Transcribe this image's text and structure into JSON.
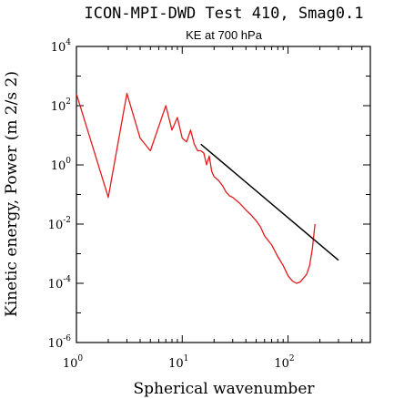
{
  "chart_data": {
    "type": "line",
    "title": "ICON-MPI-DWD Test 410, Smag0.1",
    "subtitle": "KE at 700 hPa",
    "xlabel": "Spherical wavenumber",
    "ylabel": "Kinetic energy, Power (m 2/s 2)",
    "xscale": "log",
    "yscale": "log",
    "xlim": [
      1,
      600
    ],
    "ylim": [
      1e-06,
      10000.0
    ],
    "x_ticks": [
      {
        "value": 1,
        "base": "10",
        "exp": "0"
      },
      {
        "value": 10,
        "base": "10",
        "exp": "1"
      },
      {
        "value": 100,
        "base": "10",
        "exp": "2"
      }
    ],
    "y_ticks": [
      {
        "value": 10000.0,
        "base": "10",
        "exp": "4"
      },
      {
        "value": 100.0,
        "base": "10",
        "exp": "2"
      },
      {
        "value": 1,
        "base": "10",
        "exp": "0"
      },
      {
        "value": 0.01,
        "base": "10",
        "exp": "-2"
      },
      {
        "value": 0.0001,
        "base": "10",
        "exp": "-4"
      },
      {
        "value": 1e-06,
        "base": "10",
        "exp": "-6"
      }
    ],
    "series": [
      {
        "color": "#e41a1c",
        "points": [
          [
            1,
            250
          ],
          [
            2,
            0.08
          ],
          [
            3,
            260
          ],
          [
            4,
            8
          ],
          [
            5,
            3
          ],
          [
            6,
            20
          ],
          [
            7,
            100
          ],
          [
            8,
            15
          ],
          [
            9,
            40
          ],
          [
            10,
            8
          ],
          [
            11,
            6
          ],
          [
            12,
            15
          ],
          [
            13,
            5
          ],
          [
            14,
            3
          ],
          [
            15,
            3
          ],
          [
            16,
            2.5
          ],
          [
            17,
            1
          ],
          [
            18,
            2
          ],
          [
            19,
            0.6
          ],
          [
            20,
            0.4
          ],
          [
            22,
            0.3
          ],
          [
            24,
            0.2
          ],
          [
            26,
            0.12
          ],
          [
            28,
            0.09
          ],
          [
            30,
            0.08
          ],
          [
            35,
            0.05
          ],
          [
            40,
            0.03
          ],
          [
            45,
            0.02
          ],
          [
            50,
            0.013
          ],
          [
            55,
            0.008
          ],
          [
            60,
            0.004
          ],
          [
            70,
            0.002
          ],
          [
            80,
            0.0008
          ],
          [
            90,
            0.0004
          ],
          [
            100,
            0.00018
          ],
          [
            110,
            0.00012
          ],
          [
            120,
            0.0001
          ],
          [
            130,
            0.00011
          ],
          [
            140,
            0.00015
          ],
          [
            150,
            0.0002
          ],
          [
            160,
            0.0004
          ],
          [
            170,
            0.0015
          ],
          [
            175,
            0.004
          ],
          [
            180,
            0.01
          ]
        ]
      },
      {
        "color": "#000000",
        "points": [
          [
            15,
            5
          ],
          [
            300,
            0.0006
          ]
        ]
      }
    ],
    "grid": false
  }
}
